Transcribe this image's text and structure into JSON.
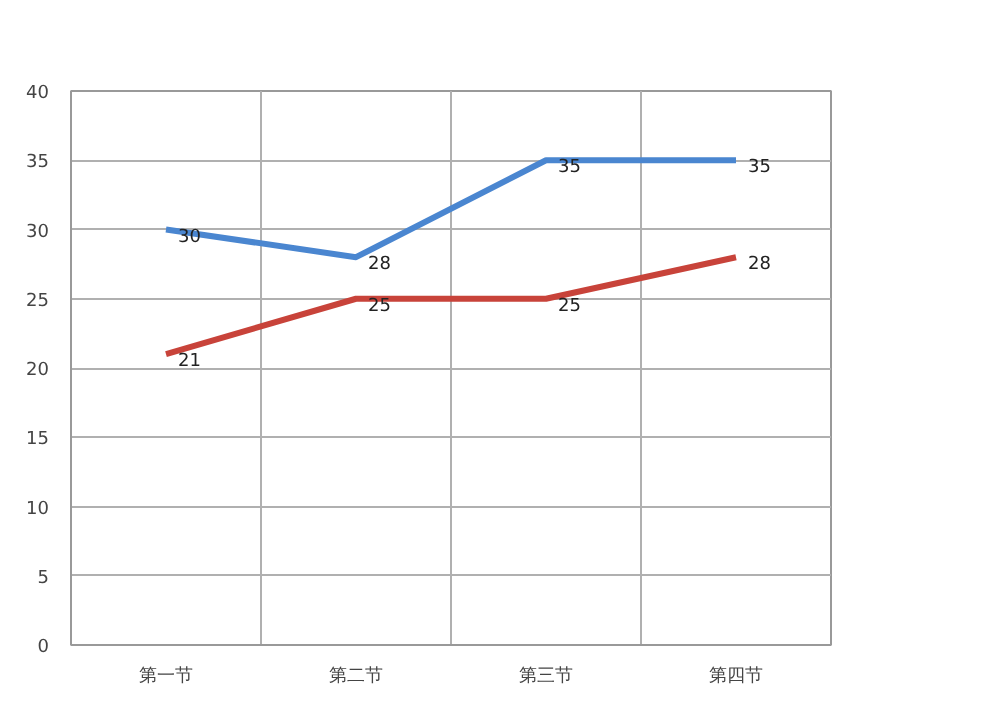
{
  "chart_data": {
    "type": "line",
    "categories": [
      "第一节",
      "第二节",
      "第三节",
      "第四节"
    ],
    "series": [
      {
        "color": "#4a86d0",
        "values": [
          30,
          28,
          35,
          35
        ]
      },
      {
        "color": "#c8433a",
        "values": [
          21,
          25,
          25,
          28
        ]
      }
    ],
    "ylim": [
      0,
      40
    ],
    "yticks": [
      0,
      5,
      10,
      15,
      20,
      25,
      30,
      35,
      40
    ],
    "grid": true,
    "data_labels": true,
    "marker": "none",
    "line_style": "solid"
  }
}
